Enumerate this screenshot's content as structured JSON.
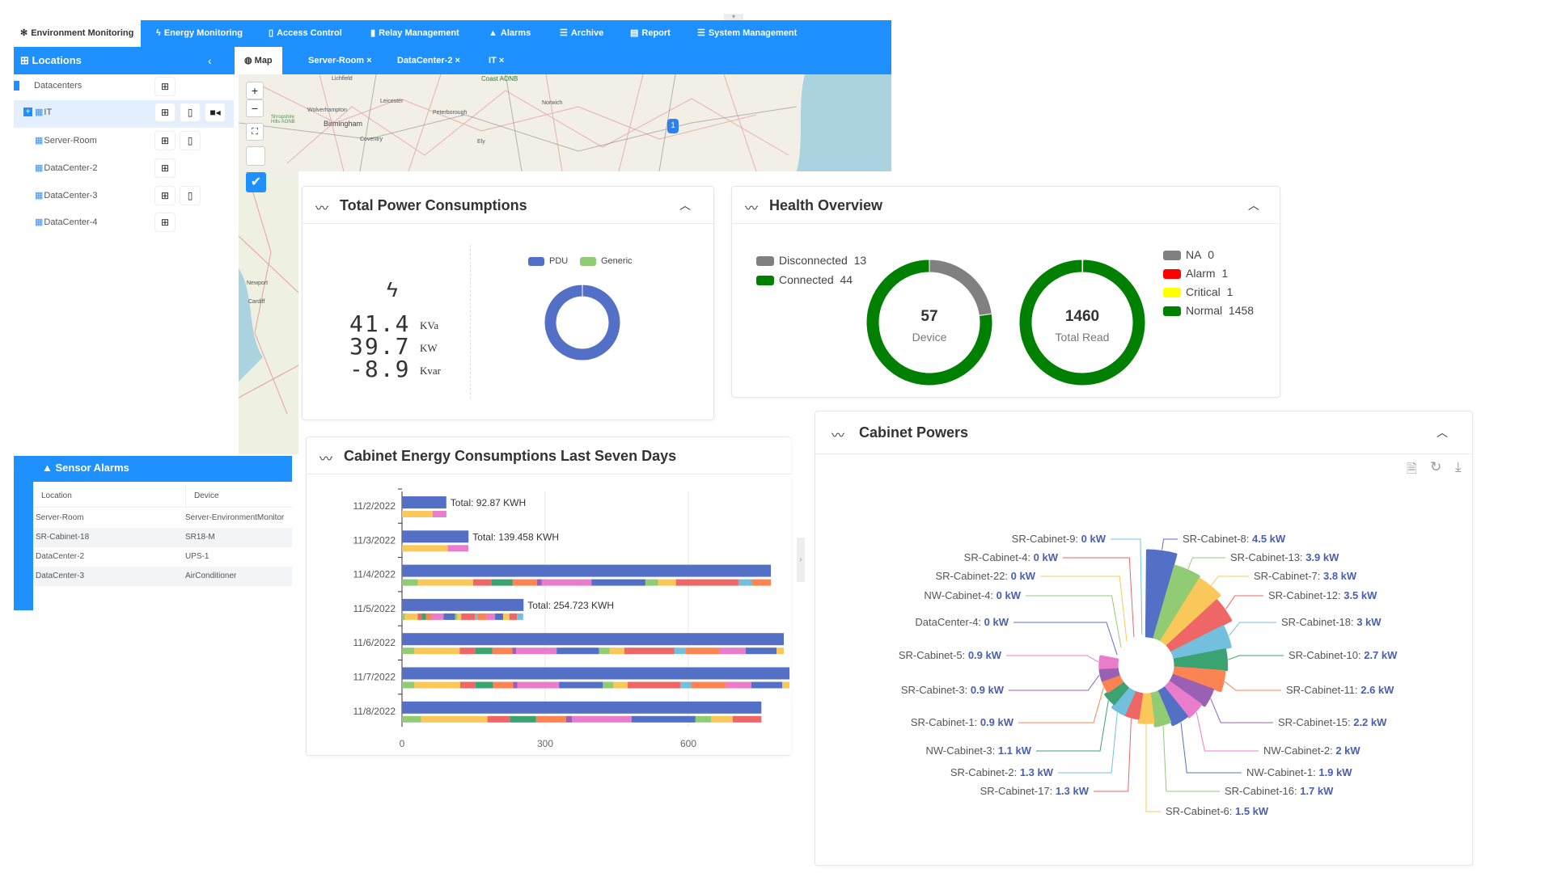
{
  "nav": {
    "items": [
      {
        "label": "Environment Monitoring",
        "icon": "snowflake-icon",
        "active": true
      },
      {
        "label": "Energy Monitoring",
        "icon": "lightning-icon"
      },
      {
        "label": "Access Control",
        "icon": "door-icon"
      },
      {
        "label": "Relay Management",
        "icon": "relay-icon"
      },
      {
        "label": "Alarms",
        "icon": "warning-icon"
      },
      {
        "label": "Archive",
        "icon": "sliders-icon"
      },
      {
        "label": "Report",
        "icon": "report-icon"
      },
      {
        "label": "System Management",
        "icon": "sliders-icon"
      }
    ]
  },
  "sidebar": {
    "title": "Locations",
    "collapse": "‹",
    "tree": [
      {
        "label": "Datacenters",
        "buttons": [
          "table"
        ]
      },
      {
        "label": "IT",
        "buttons": [
          "table",
          "map",
          "camera"
        ],
        "selected": true
      },
      {
        "label": "Server-Room",
        "buttons": [
          "table",
          "map"
        ]
      },
      {
        "label": "DataCenter-2",
        "buttons": [
          "table"
        ]
      },
      {
        "label": "DataCenter-3",
        "buttons": [
          "table",
          "map"
        ]
      },
      {
        "label": "DataCenter-4",
        "buttons": [
          "table"
        ]
      }
    ]
  },
  "tabs": [
    {
      "label": "Map",
      "active": true
    },
    {
      "label": "Server-Room",
      "close": "×"
    },
    {
      "label": "DataCenter-2",
      "close": "×"
    },
    {
      "label": "IT",
      "close": "×"
    }
  ],
  "map": {
    "cities": [
      "Lichfield",
      "Leicester",
      "Wolverhampton",
      "Birmingham",
      "Coventry",
      "Peterborough",
      "Ely",
      "Norwich",
      "Shropshire Hills AONB",
      "Coast AONB",
      "Cardiff",
      "Newport"
    ],
    "marker_label": "1",
    "zoom_in": "+",
    "zoom_out": "−",
    "layer_checked": true
  },
  "sensor_alarms": {
    "title": "Sensor Alarms",
    "columns": [
      "Location",
      "Device"
    ],
    "rows": [
      [
        "Server-Room",
        "Server-EnvironmentMonitor"
      ],
      [
        "SR-Cabinet-18",
        "SR18-M"
      ],
      [
        "DataCenter-2",
        "UPS-1"
      ],
      [
        "DataCenter-3",
        "AirConditioner"
      ]
    ]
  },
  "total_power": {
    "title": "Total Power Consumptions",
    "readings": [
      {
        "value": "41.4",
        "unit": "KVa"
      },
      {
        "value": "39.7",
        "unit": "KW"
      },
      {
        "value": "-8.9",
        "unit": "Kvar"
      }
    ],
    "chart_data": {
      "type": "pie",
      "donut": true,
      "legend": [
        "PDU",
        "Generic"
      ],
      "values": [
        39.7,
        0
      ],
      "colors": [
        "#5470c6",
        "#91cc75"
      ]
    }
  },
  "health": {
    "title": "Health Overview",
    "device": {
      "total": "57",
      "label": "Device",
      "legend": [
        {
          "name": "Disconnected",
          "value": 13,
          "color": "#808080"
        },
        {
          "name": "Connected",
          "value": 44,
          "color": "#008000"
        }
      ]
    },
    "reads": {
      "total": "1460",
      "label": "Total Read",
      "legend": [
        {
          "name": "NA",
          "value": 0,
          "color": "#808080"
        },
        {
          "name": "Alarm",
          "value": 1,
          "color": "#ff0000"
        },
        {
          "name": "Critical",
          "value": 1,
          "color": "#ffff00"
        },
        {
          "name": "Normal",
          "value": 1458,
          "color": "#008000"
        }
      ]
    }
  },
  "energy": {
    "title": "Cabinet Energy Consumptions Last Seven Days",
    "chart_data": {
      "type": "bar",
      "orientation": "horizontal",
      "categories": [
        "11/2/2022",
        "11/3/2022",
        "11/4/2022",
        "11/5/2022",
        "11/6/2022",
        "11/7/2022",
        "11/8/2022"
      ],
      "xticks": [
        0,
        300,
        600
      ],
      "grid": true,
      "totals": [
        {
          "value": 92.87,
          "label": "Total: 92.87 KWH"
        },
        {
          "value": 139.458,
          "label": "Total: 139.458 KWH"
        },
        {
          "value": null
        },
        {
          "value": 254.723,
          "label": "Total: 254.723 KWH"
        },
        {
          "value": null
        },
        {
          "value": null
        },
        {
          "value": null
        }
      ],
      "segments": [
        [
          [
            64,
            "yellow"
          ],
          [
            29,
            "pink"
          ]
        ],
        [
          [
            96,
            "yellow"
          ],
          [
            43,
            "pink"
          ]
        ],
        [
          [
            33,
            "green"
          ],
          [
            116,
            "yellow"
          ],
          [
            39,
            "red"
          ],
          [
            44,
            "dkgreen"
          ],
          [
            51,
            "orange"
          ],
          [
            10,
            "purple"
          ],
          [
            104,
            "pink"
          ],
          [
            113,
            "blue"
          ],
          [
            27,
            "green"
          ],
          [
            37,
            "yellow"
          ],
          [
            131,
            "red"
          ],
          [
            28,
            "ltblue"
          ],
          [
            40,
            "orange"
          ]
        ],
        [
          [
            6,
            "green"
          ],
          [
            27,
            "yellow"
          ],
          [
            8,
            "red"
          ],
          [
            9,
            "dkgreen"
          ],
          [
            12,
            "orange"
          ],
          [
            25,
            "pink"
          ],
          [
            24,
            "blue"
          ],
          [
            5,
            "green"
          ],
          [
            8,
            "yellow"
          ],
          [
            29,
            "red"
          ],
          [
            5,
            "ltblue"
          ],
          [
            19,
            "orange"
          ],
          [
            18,
            "pink"
          ],
          [
            17,
            "blue"
          ],
          [
            13,
            "yellow"
          ],
          [
            16,
            "red"
          ],
          [
            13,
            "ltblue"
          ]
        ],
        [
          [
            26,
            "green"
          ],
          [
            95,
            "yellow"
          ],
          [
            32,
            "red"
          ],
          [
            36,
            "dkgreen"
          ],
          [
            42,
            "orange"
          ],
          [
            8,
            "purple"
          ],
          [
            85,
            "pink"
          ],
          [
            89,
            "blue"
          ],
          [
            22,
            "green"
          ],
          [
            31,
            "yellow"
          ],
          [
            105,
            "red"
          ],
          [
            24,
            "ltblue"
          ],
          [
            71,
            "orange"
          ],
          [
            54,
            "pink"
          ],
          [
            65,
            "blue"
          ],
          [
            15,
            "yellow"
          ]
        ],
        [
          [
            26,
            "green"
          ],
          [
            96,
            "yellow"
          ],
          [
            32,
            "red"
          ],
          [
            37,
            "dkgreen"
          ],
          [
            42,
            "orange"
          ],
          [
            9,
            "purple"
          ],
          [
            87,
            "pink"
          ],
          [
            92,
            "blue"
          ],
          [
            22,
            "green"
          ],
          [
            30,
            "yellow"
          ],
          [
            110,
            "red"
          ],
          [
            23,
            "ltblue"
          ],
          [
            72,
            "orange"
          ],
          [
            54,
            "pink"
          ],
          [
            65,
            "blue"
          ],
          [
            15,
            "yellow"
          ]
        ],
        [
          [
            40,
            "green"
          ],
          [
            139,
            "yellow"
          ],
          [
            47,
            "red"
          ],
          [
            55,
            "dkgreen"
          ],
          [
            63,
            "orange"
          ],
          [
            12,
            "purple"
          ],
          [
            125,
            "pink"
          ],
          [
            134,
            "blue"
          ],
          [
            33,
            "green"
          ],
          [
            45,
            "yellow"
          ],
          [
            60,
            "red"
          ]
        ]
      ],
      "colors": {
        "blue": "#5470c6",
        "green": "#91cc75",
        "yellow": "#fac858",
        "red": "#ee6666",
        "ltblue": "#73c0de",
        "dkgreen": "#3ba272",
        "orange": "#fc8452",
        "purple": "#9a60b4",
        "pink": "#ea7ccc"
      }
    }
  },
  "cabinet": {
    "title": "Cabinet Powers",
    "tools": [
      "data-view-icon",
      "refresh-icon",
      "download-icon"
    ],
    "chart_data": {
      "type": "pie",
      "rose": true,
      "unit": "kW",
      "items": [
        {
          "name": "SR-Cabinet-8",
          "value": 4.5
        },
        {
          "name": "SR-Cabinet-13",
          "value": 3.9
        },
        {
          "name": "SR-Cabinet-7",
          "value": 3.8
        },
        {
          "name": "SR-Cabinet-12",
          "value": 3.5
        },
        {
          "name": "SR-Cabinet-18",
          "value": 3
        },
        {
          "name": "SR-Cabinet-10",
          "value": 2.7
        },
        {
          "name": "SR-Cabinet-11",
          "value": 2.6
        },
        {
          "name": "SR-Cabinet-15",
          "value": 2.2
        },
        {
          "name": "NW-Cabinet-2",
          "value": 2
        },
        {
          "name": "NW-Cabinet-1",
          "value": 1.9
        },
        {
          "name": "SR-Cabinet-16",
          "value": 1.7
        },
        {
          "name": "SR-Cabinet-6",
          "value": 1.5
        },
        {
          "name": "SR-Cabinet-17",
          "value": 1.3
        },
        {
          "name": "SR-Cabinet-2",
          "value": 1.3
        },
        {
          "name": "NW-Cabinet-3",
          "value": 1.1
        },
        {
          "name": "SR-Cabinet-1",
          "value": 0.9
        },
        {
          "name": "SR-Cabinet-3",
          "value": 0.9
        },
        {
          "name": "SR-Cabinet-5",
          "value": 0.9
        },
        {
          "name": "DataCenter-4",
          "value": 0
        },
        {
          "name": "NW-Cabinet-4",
          "value": 0
        },
        {
          "name": "SR-Cabinet-22",
          "value": 0
        },
        {
          "name": "SR-Cabinet-4",
          "value": 0
        },
        {
          "name": "SR-Cabinet-9",
          "value": 0
        }
      ],
      "palette": [
        "#5470c6",
        "#91cc75",
        "#fac858",
        "#ee6666",
        "#73c0de",
        "#3ba272",
        "#fc8452",
        "#9a60b4",
        "#ea7ccc"
      ]
    }
  }
}
